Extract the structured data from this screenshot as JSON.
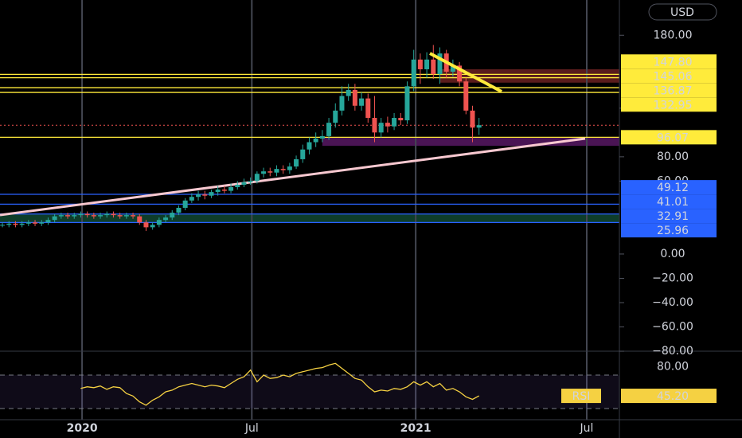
{
  "chart_data": {
    "type": "candlestick",
    "currency": "USD",
    "xlim": [
      -0.37,
      94.5
    ],
    "xticks": [
      {
        "value": 12.2,
        "label": "2020"
      },
      {
        "value": 38.2,
        "label": "Jul"
      },
      {
        "value": 63.3,
        "label": "2021"
      },
      {
        "value": 89.5,
        "label": "Jul"
      }
    ],
    "ylim": [
      -78,
      209
    ],
    "yticks": [
      {
        "value": 180,
        "label": "180.00"
      },
      {
        "value": 120,
        "label": "120.00"
      },
      {
        "value": 80,
        "label": "80.00"
      },
      {
        "value": 60,
        "label": "60.00"
      },
      {
        "value": 0,
        "label": "0.00"
      },
      {
        "value": -20,
        "label": "−20.00"
      },
      {
        "value": -40,
        "label": "−40.00"
      },
      {
        "value": -60,
        "label": "−60.00"
      },
      {
        "value": -80,
        "label": "−80.00"
      }
    ],
    "up_color": "#26a69a",
    "down_color": "#ef5350",
    "open": [
      24,
      24,
      25,
      24,
      25,
      26,
      25,
      26,
      28,
      31,
      32,
      31,
      32,
      33,
      32,
      31,
      32,
      33,
      32,
      31,
      32,
      31,
      26,
      22,
      24,
      28,
      30,
      34,
      38,
      44,
      47,
      49,
      48,
      51,
      53,
      52,
      55,
      57,
      59,
      60,
      66,
      68,
      67,
      70,
      69,
      72,
      78,
      86,
      92,
      95,
      97,
      108,
      118,
      130,
      135,
      122,
      128,
      112,
      100,
      108,
      105,
      112,
      110,
      138,
      160,
      152,
      160,
      148,
      165,
      150,
      155,
      142,
      118,
      104
    ],
    "high": [
      26,
      27,
      27,
      27,
      28,
      28,
      28,
      30,
      33,
      34,
      34,
      34,
      35,
      35,
      34,
      34,
      35,
      35,
      34,
      34,
      34,
      33,
      28,
      26,
      30,
      32,
      36,
      40,
      46,
      50,
      52,
      52,
      53,
      56,
      56,
      58,
      60,
      62,
      63,
      68,
      71,
      71,
      73,
      73,
      75,
      81,
      90,
      96,
      100,
      102,
      112,
      124,
      138,
      140,
      140,
      133,
      132,
      130,
      112,
      113,
      116,
      116,
      142,
      168,
      165,
      166,
      172,
      170,
      168,
      160,
      158,
      145,
      122,
      112
    ],
    "low": [
      22,
      22,
      22,
      22,
      23,
      23,
      23,
      24,
      26,
      29,
      29,
      29,
      30,
      30,
      29,
      29,
      30,
      30,
      29,
      29,
      29,
      24,
      19,
      20,
      22,
      26,
      28,
      32,
      36,
      42,
      44,
      45,
      46,
      48,
      50,
      50,
      53,
      55,
      57,
      58,
      63,
      64,
      64,
      66,
      66,
      70,
      75,
      82,
      88,
      92,
      94,
      104,
      114,
      126,
      118,
      118,
      108,
      92,
      96,
      100,
      102,
      106,
      107,
      134,
      140,
      145,
      144,
      140,
      145,
      146,
      138,
      115,
      92,
      98
    ],
    "close": [
      24,
      25,
      24,
      25,
      26,
      25,
      26,
      28,
      31,
      32,
      31,
      32,
      33,
      32,
      31,
      32,
      33,
      32,
      31,
      32,
      31,
      26,
      22,
      24,
      28,
      30,
      34,
      38,
      44,
      47,
      49,
      48,
      51,
      53,
      52,
      55,
      57,
      59,
      60,
      66,
      68,
      67,
      70,
      69,
      72,
      78,
      86,
      92,
      95,
      97,
      108,
      118,
      130,
      135,
      122,
      128,
      112,
      100,
      108,
      105,
      112,
      110,
      138,
      160,
      152,
      160,
      148,
      165,
      150,
      155,
      142,
      118,
      104,
      106
    ],
    "price_lines": [
      {
        "value": 147.8,
        "label": "147.80",
        "color": "#ffeb3b"
      },
      {
        "value": 145.06,
        "label": "145.06",
        "color": "#ffeb3b"
      },
      {
        "value": 136.87,
        "label": "136.87",
        "color": "#ffeb3b"
      },
      {
        "value": 132.95,
        "label": "132.95",
        "color": "#ffeb3b"
      },
      {
        "value": 96.07,
        "label": "96.07",
        "color": "#ffeb3b"
      },
      {
        "value": 49.12,
        "label": "49.12",
        "color": "#2962ff"
      },
      {
        "value": 41.01,
        "label": "41.01",
        "color": "#2962ff"
      },
      {
        "value": 32.91,
        "label": "32.91",
        "color": "#2962ff"
      },
      {
        "value": 25.96,
        "label": "25.96",
        "color": "#2962ff"
      }
    ],
    "zones": [
      {
        "from": 141,
        "to": 152,
        "x_from": 67,
        "color": "#5a1c1c"
      },
      {
        "from": 89,
        "to": 96.07,
        "x_from": 49,
        "color": "#4a1454"
      },
      {
        "from": 25.96,
        "to": 32.91,
        "x_from": -0.37,
        "color": "#0e3d2a"
      }
    ],
    "rsi": {
      "name": "RSI",
      "color": "#f5d142",
      "ylim": [
        16.7,
        98.6
      ],
      "yticks": [
        {
          "value": 80,
          "label": "80.00"
        }
      ],
      "bands": [
        30,
        70
      ],
      "values": [
        null,
        null,
        null,
        null,
        null,
        null,
        null,
        null,
        null,
        null,
        null,
        null,
        54,
        56,
        55,
        57,
        53,
        56,
        55,
        48,
        45,
        38,
        34,
        40,
        44,
        50,
        52,
        56,
        58,
        60,
        58,
        56,
        58,
        57,
        55,
        60,
        65,
        68,
        76,
        62,
        70,
        66,
        67,
        70,
        68,
        72,
        74,
        76,
        78,
        79,
        82,
        84,
        78,
        72,
        66,
        64,
        56,
        50,
        52,
        51,
        54,
        53,
        56,
        62,
        58,
        62,
        56,
        60,
        52,
        54,
        50,
        44,
        41,
        45.2
      ],
      "last_label": "45.20"
    }
  }
}
